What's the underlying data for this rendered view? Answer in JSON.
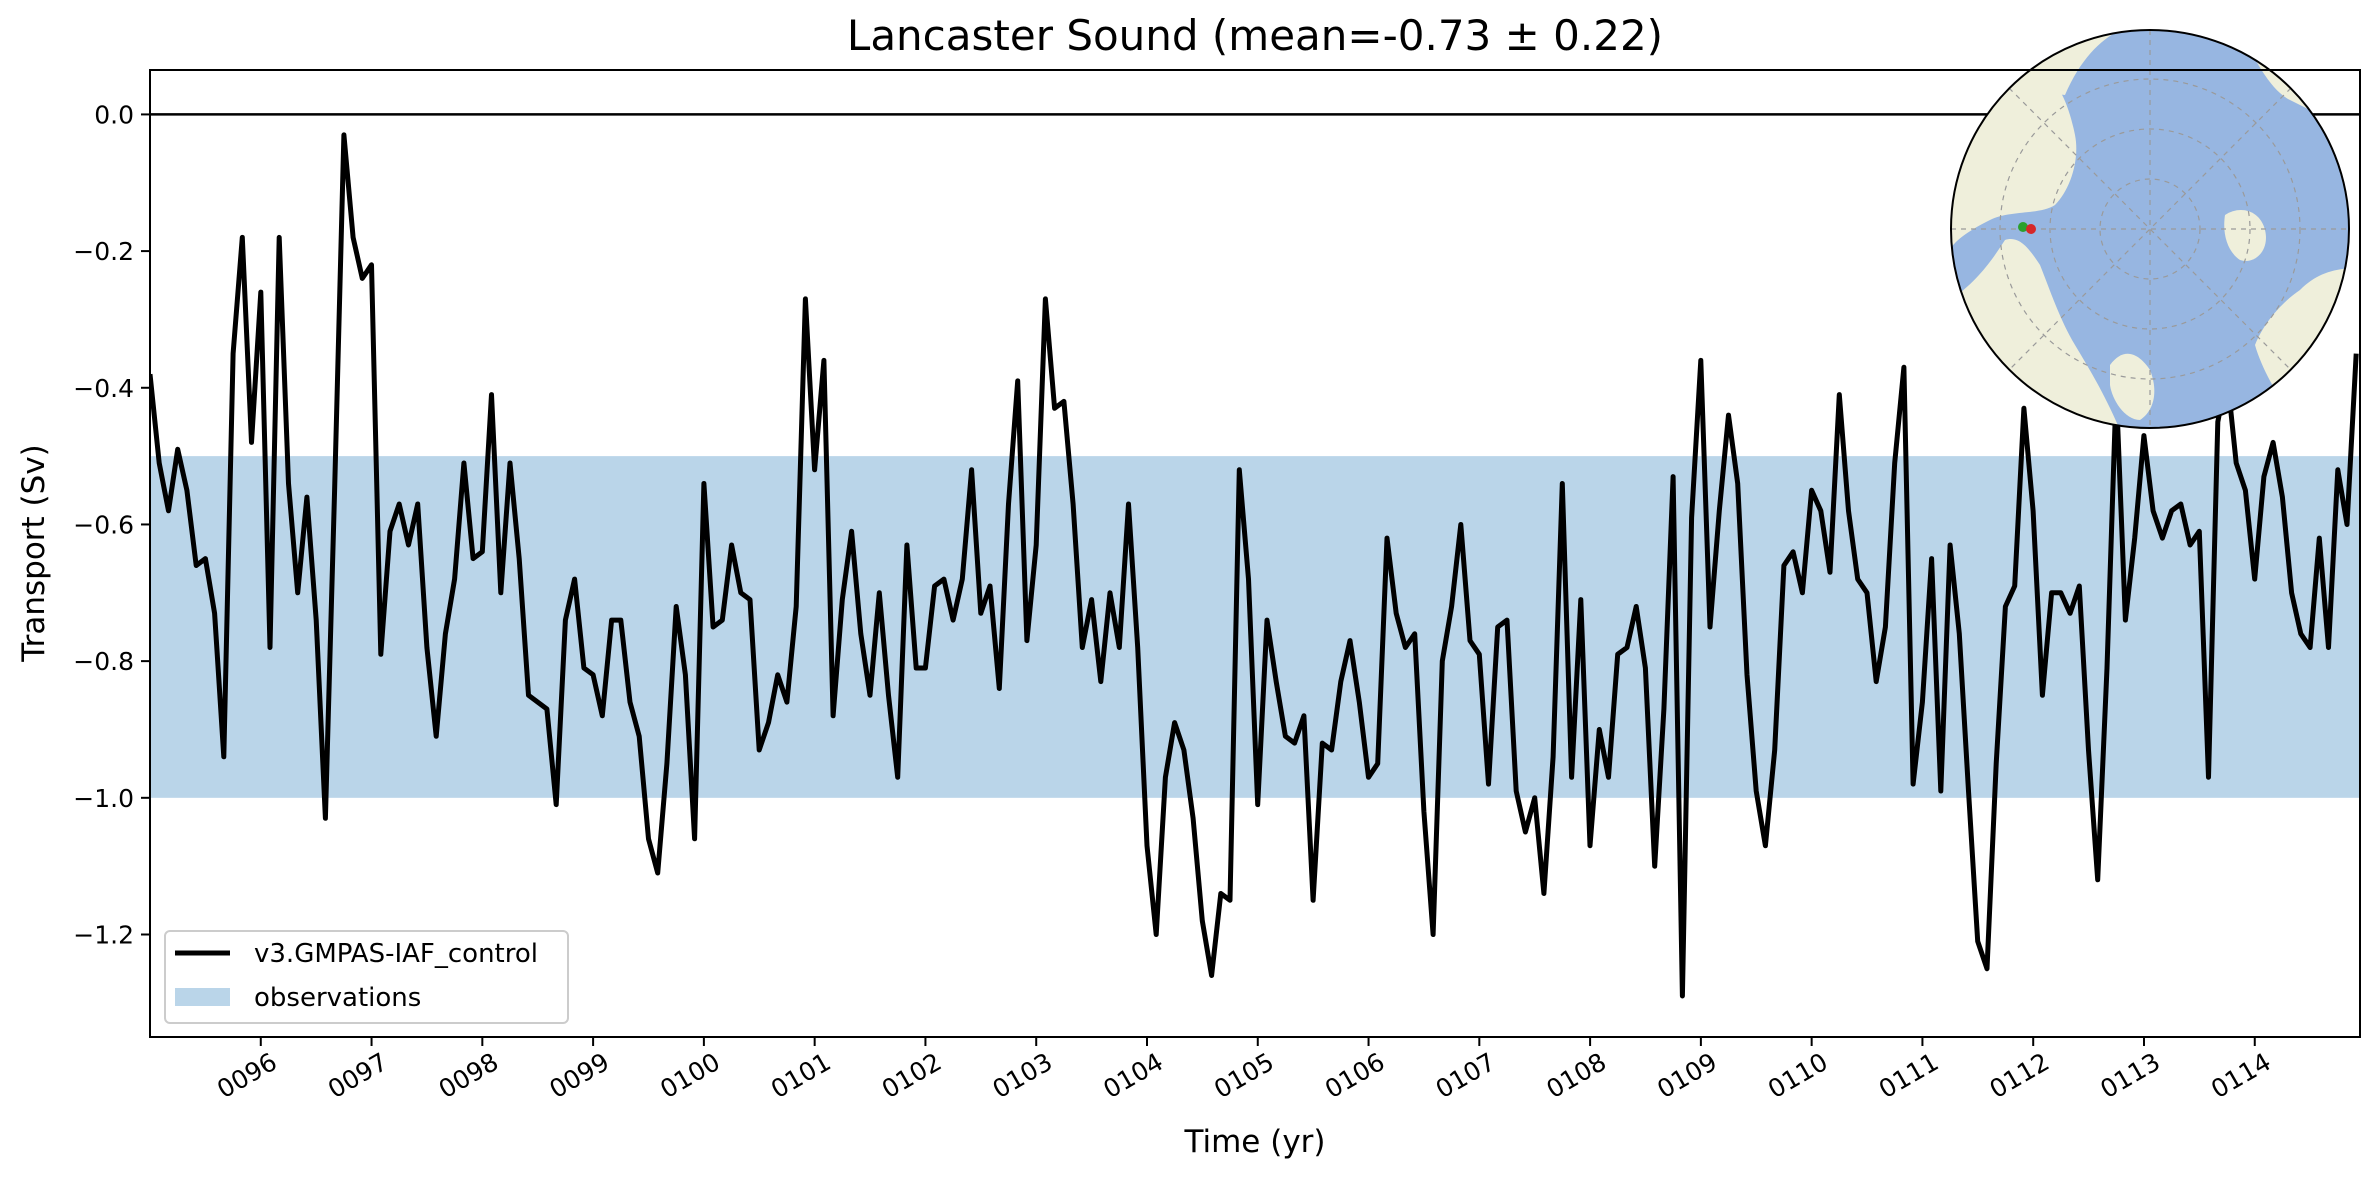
{
  "chart_data": {
    "type": "line",
    "title": "Lancaster Sound (mean=-0.73 ± 0.22)",
    "xlabel": "Time (yr)",
    "ylabel": "Transport (Sv)",
    "xlim": [
      95.0,
      114.95
    ],
    "ylim": [
      -1.35,
      0.065
    ],
    "x_ticks": [
      96,
      97,
      98,
      99,
      100,
      101,
      102,
      103,
      104,
      105,
      106,
      107,
      108,
      109,
      110,
      111,
      112,
      113,
      114
    ],
    "x_tick_labels": [
      "0096",
      "0097",
      "0098",
      "0099",
      "0100",
      "0101",
      "0102",
      "0103",
      "0104",
      "0105",
      "0106",
      "0107",
      "0108",
      "0109",
      "0110",
      "0111",
      "0112",
      "0113",
      "0114"
    ],
    "y_ticks": [
      0.0,
      -0.2,
      -0.4,
      -0.6,
      -0.8,
      -1.0,
      -1.2
    ],
    "y_tick_labels": [
      "0.0",
      "−0.2",
      "−0.4",
      "−0.6",
      "−0.8",
      "−1.0",
      "−1.2"
    ],
    "zero_line": 0.0,
    "observation_band": {
      "name": "observations",
      "ymin": -1.0,
      "ymax": -0.5,
      "color": "#bad5e9"
    },
    "legend_position": "lower-left",
    "grid": false,
    "series": [
      {
        "name": "v3.GMPAS-IAF_control",
        "color": "#000000",
        "x_start": 95.0,
        "x_step": 0.08333,
        "values": [
          -0.38,
          -0.51,
          -0.58,
          -0.49,
          -0.55,
          -0.66,
          -0.65,
          -0.73,
          -0.94,
          -0.35,
          -0.18,
          -0.48,
          -0.26,
          -0.78,
          -0.18,
          -0.54,
          -0.7,
          -0.56,
          -0.74,
          -1.03,
          -0.55,
          -0.03,
          -0.18,
          -0.24,
          -0.22,
          -0.79,
          -0.61,
          -0.57,
          -0.63,
          -0.57,
          -0.78,
          -0.91,
          -0.76,
          -0.68,
          -0.51,
          -0.65,
          -0.64,
          -0.41,
          -0.7,
          -0.51,
          -0.65,
          -0.85,
          -0.86,
          -0.87,
          -1.01,
          -0.74,
          -0.68,
          -0.81,
          -0.82,
          -0.88,
          -0.74,
          -0.74,
          -0.86,
          -0.91,
          -1.06,
          -1.11,
          -0.95,
          -0.72,
          -0.82,
          -1.06,
          -0.54,
          -0.75,
          -0.74,
          -0.63,
          -0.7,
          -0.71,
          -0.93,
          -0.89,
          -0.82,
          -0.86,
          -0.72,
          -0.27,
          -0.52,
          -0.36,
          -0.88,
          -0.71,
          -0.61,
          -0.76,
          -0.85,
          -0.7,
          -0.85,
          -0.97,
          -0.63,
          -0.81,
          -0.81,
          -0.69,
          -0.68,
          -0.74,
          -0.68,
          -0.52,
          -0.73,
          -0.69,
          -0.84,
          -0.57,
          -0.39,
          -0.77,
          -0.63,
          -0.27,
          -0.43,
          -0.42,
          -0.57,
          -0.78,
          -0.71,
          -0.83,
          -0.7,
          -0.78,
          -0.57,
          -0.78,
          -1.07,
          -1.2,
          -0.97,
          -0.89,
          -0.93,
          -1.03,
          -1.18,
          -1.26,
          -1.14,
          -1.15,
          -0.52,
          -0.68,
          -1.01,
          -0.74,
          -0.83,
          -0.91,
          -0.92,
          -0.88,
          -1.15,
          -0.92,
          -0.93,
          -0.83,
          -0.77,
          -0.86,
          -0.97,
          -0.95,
          -0.62,
          -0.73,
          -0.78,
          -0.76,
          -1.02,
          -1.2,
          -0.8,
          -0.72,
          -0.6,
          -0.77,
          -0.79,
          -0.98,
          -0.75,
          -0.74,
          -0.99,
          -1.05,
          -1.0,
          -1.14,
          -0.94,
          -0.54,
          -0.97,
          -0.71,
          -1.07,
          -0.9,
          -0.97,
          -0.79,
          -0.78,
          -0.72,
          -0.81,
          -1.1,
          -0.87,
          -0.53,
          -1.29,
          -0.59,
          -0.36,
          -0.75,
          -0.58,
          -0.44,
          -0.54,
          -0.82,
          -0.99,
          -1.07,
          -0.93,
          -0.66,
          -0.64,
          -0.7,
          -0.55,
          -0.58,
          -0.67,
          -0.41,
          -0.58,
          -0.68,
          -0.7,
          -0.83,
          -0.75,
          -0.51,
          -0.37,
          -0.98,
          -0.86,
          -0.65,
          -0.99,
          -0.63,
          -0.76,
          -0.99,
          -1.21,
          -1.25,
          -0.95,
          -0.72,
          -0.69,
          -0.43,
          -0.58,
          -0.85,
          -0.7,
          -0.7,
          -0.73,
          -0.69,
          -0.93,
          -1.12,
          -0.81,
          -0.4,
          -0.74,
          -0.62,
          -0.47,
          -0.58,
          -0.62,
          -0.58,
          -0.57,
          -0.63,
          -0.61,
          -0.97,
          -0.45,
          -0.38,
          -0.51,
          -0.55,
          -0.68,
          -0.53,
          -0.48,
          -0.56,
          -0.7,
          -0.76,
          -0.78,
          -0.62,
          -0.78,
          -0.52,
          -0.6,
          -0.35
        ]
      }
    ],
    "inset_map": {
      "projection": "north-polar",
      "ocean_color": "#97b6e1",
      "land_color": "#efefdb",
      "marker_colors": [
        "#2ca02c",
        "#d62728"
      ]
    }
  }
}
